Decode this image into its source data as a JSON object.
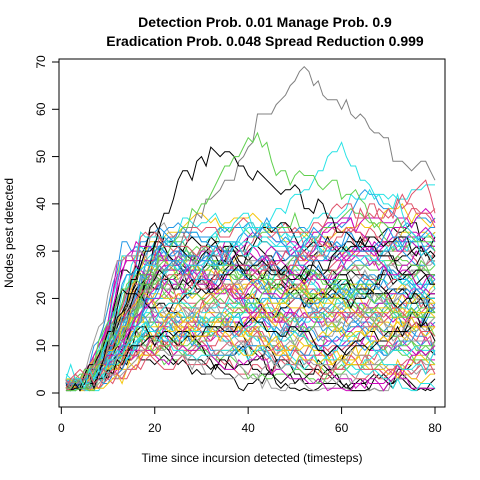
{
  "chart_data": {
    "type": "line",
    "title_line1": "Detection Prob. 0.01 Manage Prob. 0.9",
    "title_line2": "Eradication Prob. 0.048 Spread Reduction 0.999",
    "xlabel": "Time since incursion detected (timesteps)",
    "ylabel": "Nodes pest detected",
    "xlim": [
      1,
      80
    ],
    "ylim": [
      0,
      70
    ],
    "xticks": [
      0,
      20,
      40,
      60,
      80
    ],
    "yticks": [
      0,
      10,
      20,
      30,
      40,
      50,
      60,
      70
    ],
    "grid": false,
    "legend": "none",
    "n_series": 100,
    "timesteps": 80,
    "description_of_series": "~100 simulated stochastic trajectories; each rises from ~1-3 around t=1-5, grows through t=10-25, then fluctuates on plateaus mostly between 5 and 35; a few reach 50-68.",
    "highlight_series": [
      {
        "color": "#808080",
        "peak": 68,
        "peak_t": 51,
        "end": 44
      },
      {
        "color": "#000000",
        "peak": 52,
        "peak_t": 29,
        "end": 22
      },
      {
        "color": "#28E2E5",
        "peak": 50,
        "peak_t": 60,
        "end": 27
      },
      {
        "color": "#61D04F",
        "peak": 53,
        "peak_t": 38,
        "end": 30
      },
      {
        "color": "#DF536B",
        "peak": 44,
        "peak_t": 76,
        "end": 36
      }
    ],
    "palette": [
      "#000000",
      "#DF536B",
      "#61D04F",
      "#2297E6",
      "#28E2E5",
      "#CD0BBC",
      "#F5C710",
      "#9E9E9E"
    ]
  }
}
